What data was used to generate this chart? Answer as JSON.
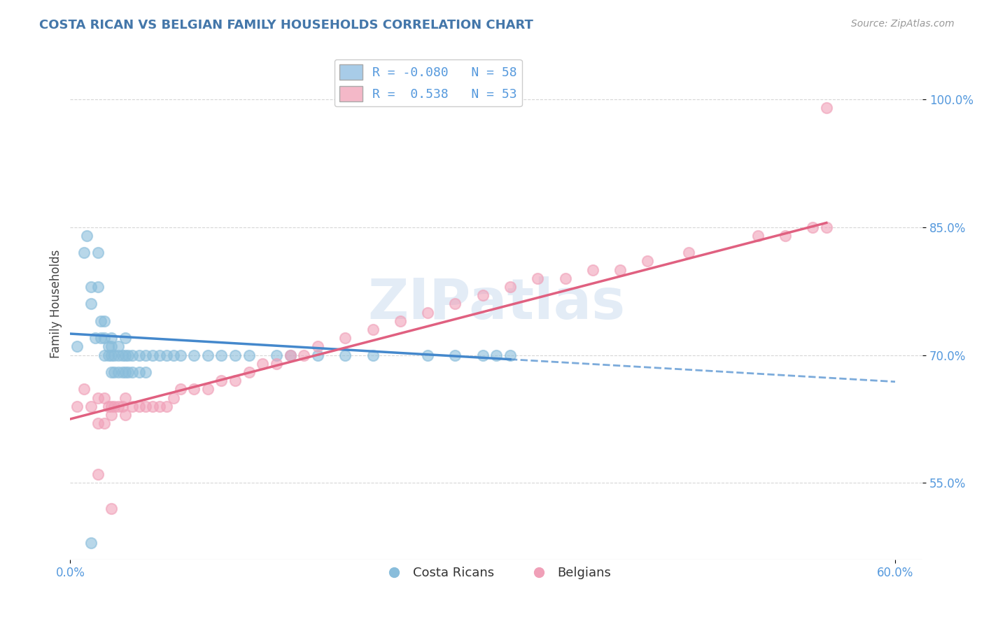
{
  "title": "COSTA RICAN VS BELGIAN FAMILY HOUSEHOLDS CORRELATION CHART",
  "source": "Source: ZipAtlas.com",
  "ylabel": "Family Households",
  "xlim": [
    0.0,
    0.62
  ],
  "ylim": [
    0.46,
    1.06
  ],
  "ytick_labels": [
    "55.0%",
    "70.0%",
    "85.0%",
    "100.0%"
  ],
  "ytick_values": [
    0.55,
    0.7,
    0.85,
    1.0
  ],
  "xtick_values": [
    0.0,
    0.6
  ],
  "xtick_labels": [
    "0.0%",
    "60.0%"
  ],
  "costa_rican_color": "#89bddb",
  "belgian_color": "#f0a0b8",
  "trend_cr_color": "#4488cc",
  "trend_be_color": "#e06080",
  "legend_cr_color": "#a8cce8",
  "legend_be_color": "#f4b8c8",
  "background_color": "#ffffff",
  "watermark": "ZIPatlas",
  "grid_color": "#cccccc",
  "tick_color": "#5599dd",
  "title_color": "#4477aa",
  "source_color": "#999999",
  "ylabel_color": "#444444",
  "cr_R": -0.08,
  "cr_N": 58,
  "be_R": 0.538,
  "be_N": 53,
  "cr_trend_x0": 0.0,
  "cr_trend_y0": 0.725,
  "cr_trend_x1": 0.32,
  "cr_trend_y1": 0.695,
  "cr_trend_solid_end": 0.32,
  "cr_trend_dash_end": 0.6,
  "be_trend_x0": 0.0,
  "be_trend_y0": 0.625,
  "be_trend_x1": 0.55,
  "be_trend_y1": 0.855,
  "costa_rican_x": [
    0.005,
    0.01,
    0.012,
    0.015,
    0.015,
    0.018,
    0.02,
    0.02,
    0.022,
    0.022,
    0.025,
    0.025,
    0.025,
    0.028,
    0.028,
    0.03,
    0.03,
    0.03,
    0.03,
    0.032,
    0.032,
    0.035,
    0.035,
    0.035,
    0.038,
    0.038,
    0.04,
    0.04,
    0.04,
    0.042,
    0.042,
    0.045,
    0.045,
    0.05,
    0.05,
    0.055,
    0.055,
    0.06,
    0.065,
    0.07,
    0.075,
    0.08,
    0.09,
    0.1,
    0.11,
    0.12,
    0.13,
    0.15,
    0.16,
    0.18,
    0.2,
    0.22,
    0.26,
    0.28,
    0.3,
    0.31,
    0.32,
    0.015
  ],
  "costa_rican_y": [
    0.71,
    0.82,
    0.84,
    0.76,
    0.78,
    0.72,
    0.82,
    0.78,
    0.72,
    0.74,
    0.7,
    0.72,
    0.74,
    0.7,
    0.71,
    0.68,
    0.7,
    0.71,
    0.72,
    0.68,
    0.7,
    0.68,
    0.7,
    0.71,
    0.68,
    0.7,
    0.68,
    0.7,
    0.72,
    0.68,
    0.7,
    0.68,
    0.7,
    0.68,
    0.7,
    0.68,
    0.7,
    0.7,
    0.7,
    0.7,
    0.7,
    0.7,
    0.7,
    0.7,
    0.7,
    0.7,
    0.7,
    0.7,
    0.7,
    0.7,
    0.7,
    0.7,
    0.7,
    0.7,
    0.7,
    0.7,
    0.7,
    0.48
  ],
  "belgian_x": [
    0.005,
    0.01,
    0.015,
    0.02,
    0.02,
    0.025,
    0.025,
    0.028,
    0.03,
    0.03,
    0.032,
    0.035,
    0.038,
    0.04,
    0.04,
    0.045,
    0.05,
    0.055,
    0.06,
    0.065,
    0.07,
    0.075,
    0.08,
    0.09,
    0.1,
    0.11,
    0.12,
    0.13,
    0.14,
    0.15,
    0.16,
    0.17,
    0.18,
    0.2,
    0.22,
    0.24,
    0.26,
    0.28,
    0.3,
    0.32,
    0.34,
    0.36,
    0.38,
    0.4,
    0.42,
    0.45,
    0.5,
    0.52,
    0.54,
    0.55,
    0.02,
    0.03,
    0.55
  ],
  "belgian_y": [
    0.64,
    0.66,
    0.64,
    0.65,
    0.62,
    0.62,
    0.65,
    0.64,
    0.64,
    0.63,
    0.64,
    0.64,
    0.64,
    0.63,
    0.65,
    0.64,
    0.64,
    0.64,
    0.64,
    0.64,
    0.64,
    0.65,
    0.66,
    0.66,
    0.66,
    0.67,
    0.67,
    0.68,
    0.69,
    0.69,
    0.7,
    0.7,
    0.71,
    0.72,
    0.73,
    0.74,
    0.75,
    0.76,
    0.77,
    0.78,
    0.79,
    0.79,
    0.8,
    0.8,
    0.81,
    0.82,
    0.84,
    0.84,
    0.85,
    0.85,
    0.56,
    0.52,
    0.99
  ]
}
